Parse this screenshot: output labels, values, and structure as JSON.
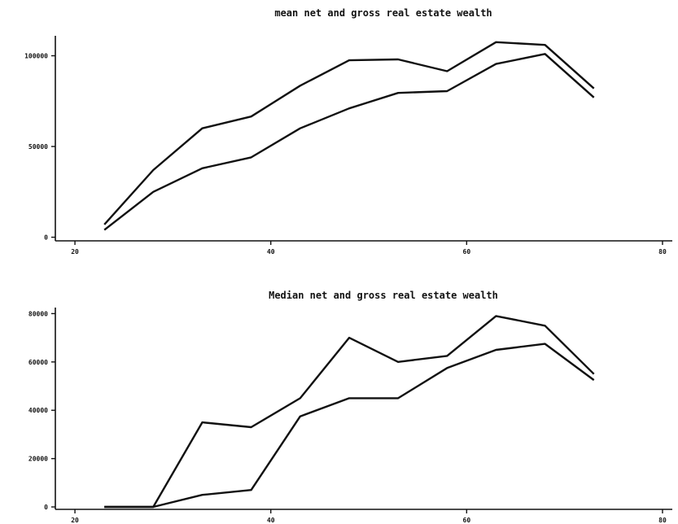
{
  "chart_data": [
    {
      "type": "line",
      "title": "mean net and gross real estate wealth",
      "xlabel": "",
      "ylabel": "",
      "xlim": [
        18,
        81
      ],
      "ylim": [
        -2000,
        111000
      ],
      "x_ticks": [
        20,
        40,
        60,
        80
      ],
      "x_tick_labels": [
        "20",
        "40",
        "60",
        "80"
      ],
      "y_ticks": [
        0,
        50000,
        100000
      ],
      "y_tick_labels": [
        "0",
        "50000",
        "100000"
      ],
      "grid": false,
      "legend": "none",
      "x": [
        23,
        28,
        33,
        38,
        43,
        48,
        53,
        58,
        63,
        68,
        73
      ],
      "series": [
        {
          "values": [
            7000,
            37000,
            60000,
            66500,
            83500,
            97500,
            98000,
            91500,
            107500,
            106000,
            82000
          ]
        },
        {
          "values": [
            4000,
            25000,
            38000,
            44000,
            60000,
            71000,
            79500,
            80500,
            95500,
            101000,
            77000
          ]
        }
      ]
    },
    {
      "type": "line",
      "title": "Median net and gross real estate wealth",
      "xlabel": "",
      "ylabel": "",
      "xlim": [
        18,
        81
      ],
      "ylim": [
        -1000,
        82500
      ],
      "x_ticks": [
        20,
        40,
        60,
        80
      ],
      "x_tick_labels": [
        "20",
        "40",
        "60",
        "80"
      ],
      "y_ticks": [
        0,
        20000,
        40000,
        60000,
        80000
      ],
      "y_tick_labels": [
        "0",
        "20000",
        "40000",
        "60000",
        "80000"
      ],
      "grid": false,
      "legend": "none",
      "x": [
        23,
        28,
        33,
        38,
        43,
        48,
        53,
        58,
        63,
        68,
        73
      ],
      "series": [
        {
          "values": [
            0,
            0,
            35000,
            33000,
            45000,
            70000,
            60000,
            62500,
            79000,
            75000,
            55000
          ]
        },
        {
          "values": [
            0,
            0,
            5000,
            7000,
            37500,
            45000,
            45000,
            57500,
            65000,
            67500,
            52500
          ]
        }
      ]
    }
  ]
}
